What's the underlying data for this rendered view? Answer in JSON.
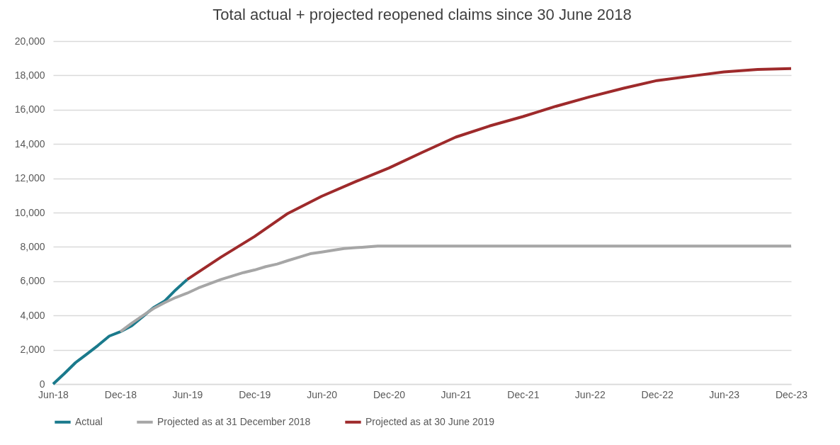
{
  "chart_data": {
    "type": "line",
    "title": "Total actual + projected reopened claims since 30 June 2018",
    "xlim": [
      "2018-06",
      "2023-12"
    ],
    "xticks": [
      {
        "value": "2018-06",
        "label": "Jun-18"
      },
      {
        "value": "2018-12",
        "label": "Dec-18"
      },
      {
        "value": "2019-06",
        "label": "Jun-19"
      },
      {
        "value": "2019-12",
        "label": "Dec-19"
      },
      {
        "value": "2020-06",
        "label": "Jun-20"
      },
      {
        "value": "2020-12",
        "label": "Dec-20"
      },
      {
        "value": "2021-06",
        "label": "Jun-21"
      },
      {
        "value": "2021-12",
        "label": "Dec-21"
      },
      {
        "value": "2022-06",
        "label": "Jun-22"
      },
      {
        "value": "2022-12",
        "label": "Dec-22"
      },
      {
        "value": "2023-06",
        "label": "Jun-23"
      },
      {
        "value": "2023-12",
        "label": "Dec-23"
      }
    ],
    "ylim": [
      0,
      20000
    ],
    "yticks": [
      0,
      {
        "value": 2000,
        "label": "2,000"
      },
      {
        "value": 4000,
        "label": "4,000"
      },
      {
        "value": 6000,
        "label": "6,000"
      },
      {
        "value": 8000,
        "label": "8,000"
      },
      {
        "value": 10000,
        "label": "10,000"
      },
      {
        "value": 12000,
        "label": "12,000"
      },
      {
        "value": 14000,
        "label": "14,000"
      },
      {
        "value": 16000,
        "label": "16,000"
      },
      {
        "value": 18000,
        "label": "18,000"
      },
      {
        "value": 20000,
        "label": "20,000"
      }
    ],
    "grid": "y",
    "legend": "bottom",
    "line_style": "solid",
    "marker": "none",
    "series": [
      {
        "name": "Actual",
        "color": "#1a7a8c",
        "x": [
          "2018-06",
          "2018-07",
          "2018-08",
          "2018-09",
          "2018-10",
          "2018-11",
          "2018-12",
          "2019-01",
          "2019-02",
          "2019-03",
          "2019-04",
          "2019-05",
          "2019-06"
        ],
        "values": [
          0,
          600,
          1250,
          1750,
          2250,
          2800,
          3050,
          3400,
          3950,
          4450,
          4850,
          5500,
          6100
        ]
      },
      {
        "name": "Projected as at 31 December 2018",
        "color": "#a6a6a6",
        "x": [
          "2018-12",
          "2019-01",
          "2019-02",
          "2019-03",
          "2019-04",
          "2019-05",
          "2019-06",
          "2019-07",
          "2019-08",
          "2019-09",
          "2019-10",
          "2019-11",
          "2019-12",
          "2020-01",
          "2020-02",
          "2020-03",
          "2020-04",
          "2020-05",
          "2020-06",
          "2020-07",
          "2020-08",
          "2020-09",
          "2020-10",
          "2020-11",
          "2020-12",
          "2021-06",
          "2021-12",
          "2022-06",
          "2022-12",
          "2023-06",
          "2023-12"
        ],
        "values": [
          3050,
          3550,
          4000,
          4400,
          4750,
          5050,
          5300,
          5600,
          5850,
          6100,
          6300,
          6500,
          6650,
          6850,
          7000,
          7200,
          7400,
          7600,
          7700,
          7800,
          7900,
          7950,
          8000,
          8050,
          8050,
          8050,
          8050,
          8050,
          8050,
          8050,
          8050
        ]
      },
      {
        "name": "Projected as at 30 June 2019",
        "color": "#9e2a2b",
        "x": [
          "2019-06",
          "2019-09",
          "2019-12",
          "2020-03",
          "2020-06",
          "2020-09",
          "2020-12",
          "2021-03",
          "2021-06",
          "2021-09",
          "2021-12",
          "2022-03",
          "2022-06",
          "2022-09",
          "2022-12",
          "2023-03",
          "2023-06",
          "2023-09",
          "2023-12"
        ],
        "values": [
          6100,
          7400,
          8600,
          9950,
          10950,
          11800,
          12600,
          13500,
          14400,
          15050,
          15600,
          16200,
          16750,
          17250,
          17700,
          17950,
          18200,
          18350,
          18400
        ]
      }
    ]
  }
}
